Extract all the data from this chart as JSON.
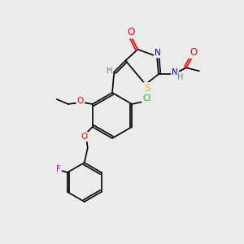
{
  "bg_color": "#ebebeb",
  "bond_color": "#000000",
  "atom_colors": {
    "O": "#ff0000",
    "N": "#0000cd",
    "S": "#cccc00",
    "Cl": "#00cc00",
    "F": "#cc00cc",
    "H": "#4a8a8a",
    "C": "#000000"
  },
  "font_size": 7.5,
  "lw": 1.2
}
